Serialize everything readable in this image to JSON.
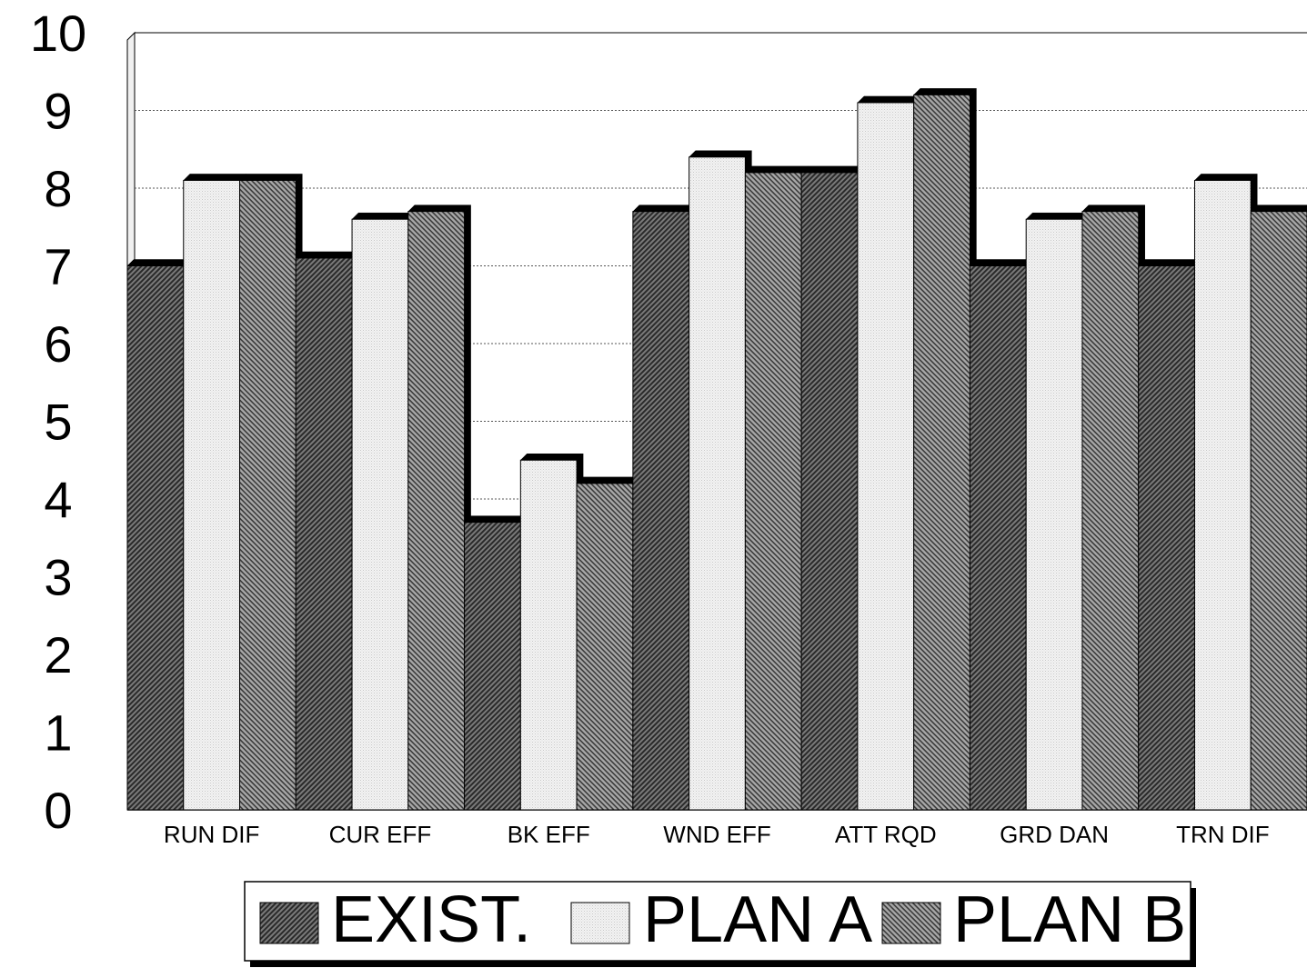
{
  "chart_data": {
    "type": "bar",
    "categories": [
      "RUN DIF",
      "CUR EFF",
      "BK EFF",
      "WND EFF",
      "ATT RQD",
      "GRD DAN",
      "TRN DIF"
    ],
    "series": [
      {
        "name": "EXIST.",
        "values": [
          7.0,
          7.1,
          3.7,
          7.7,
          8.2,
          7.0,
          7.0
        ]
      },
      {
        "name": "PLAN A",
        "values": [
          8.1,
          7.6,
          4.5,
          8.4,
          9.1,
          7.6,
          8.1
        ]
      },
      {
        "name": "PLAN B",
        "values": [
          8.1,
          7.7,
          4.2,
          8.2,
          9.2,
          7.7,
          7.7
        ]
      }
    ],
    "yticks": [
      "0",
      "1",
      "2",
      "3",
      "4",
      "5",
      "6",
      "7",
      "8",
      "9",
      "10"
    ],
    "ylim": [
      0,
      10
    ],
    "grid": true,
    "legend": "bottom",
    "title": "",
    "xlabel": "",
    "ylabel": ""
  }
}
